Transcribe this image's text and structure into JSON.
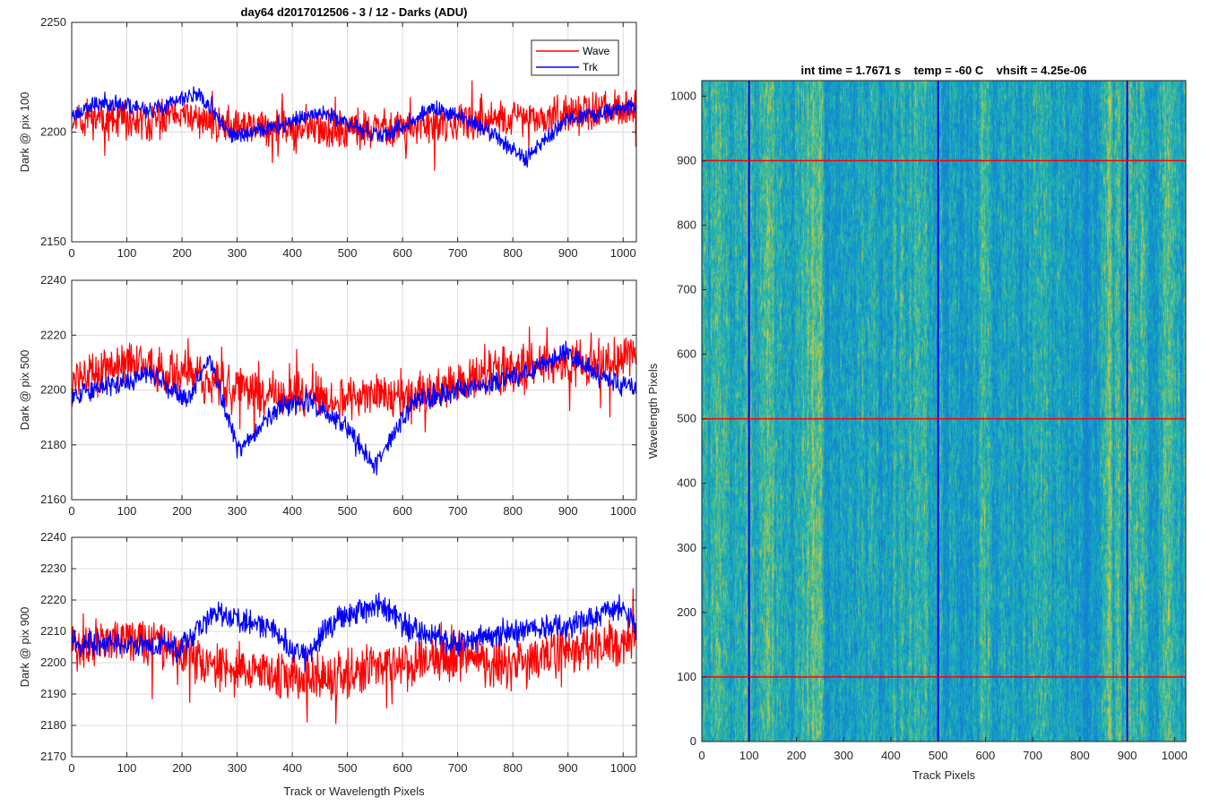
{
  "colors": {
    "wave": "#ff0000",
    "trk": "#0000ff",
    "grid": "#dcdcdc",
    "axis": "#262626"
  },
  "chart_data": [
    {
      "type": "line",
      "title": "day64 d2017012506 - 3 / 12 - Darks (ADU)",
      "xlabel": "",
      "ylabel": "Dark @ pix 100",
      "xlim": [
        0,
        1024
      ],
      "ylim": [
        2150,
        2250
      ],
      "xticks": [
        "0",
        "100",
        "200",
        "300",
        "400",
        "500",
        "600",
        "700",
        "800",
        "900",
        "1000"
      ],
      "yticks": [
        "2150",
        "2200",
        "2250"
      ],
      "grid": true,
      "legend": "top-right",
      "series": [
        {
          "name": "Wave",
          "color": "#ff0000",
          "n": 1024,
          "seed": 11,
          "noise": 6.5,
          "spike": 2.4,
          "base": [
            [
              0,
              2206
            ],
            [
              100,
              2205
            ],
            [
              200,
              2206
            ],
            [
              300,
              2203
            ],
            [
              400,
              2201
            ],
            [
              500,
              2201
            ],
            [
              600,
              2202
            ],
            [
              700,
              2204
            ],
            [
              800,
              2206
            ],
            [
              900,
              2208
            ],
            [
              1024,
              2212
            ]
          ]
        },
        {
          "name": "Trk",
          "color": "#0000ff",
          "n": 1024,
          "seed": 23,
          "noise": 3.0,
          "spike": 1.2,
          "base": [
            [
              0,
              2208
            ],
            [
              60,
              2214
            ],
            [
              150,
              2210
            ],
            [
              230,
              2218
            ],
            [
              290,
              2198
            ],
            [
              380,
              2203
            ],
            [
              450,
              2210
            ],
            [
              550,
              2198
            ],
            [
              600,
              2202
            ],
            [
              660,
              2212
            ],
            [
              760,
              2200
            ],
            [
              820,
              2188
            ],
            [
              900,
              2206
            ],
            [
              1024,
              2212
            ]
          ]
        }
      ]
    },
    {
      "type": "line",
      "title": "",
      "xlabel": "",
      "ylabel": "Dark @ pix 500",
      "xlim": [
        0,
        1024
      ],
      "ylim": [
        2160,
        2240
      ],
      "xticks": [
        "0",
        "100",
        "200",
        "300",
        "400",
        "500",
        "600",
        "700",
        "800",
        "900",
        "1000"
      ],
      "yticks": [
        "2160",
        "2180",
        "2200",
        "2220",
        "2240"
      ],
      "grid": true,
      "series": [
        {
          "name": "Wave",
          "color": "#ff0000",
          "n": 1024,
          "seed": 37,
          "noise": 6.5,
          "spike": 2.2,
          "base": [
            [
              0,
              2203
            ],
            [
              100,
              2210
            ],
            [
              200,
              2206
            ],
            [
              300,
              2200
            ],
            [
              400,
              2198
            ],
            [
              500,
              2198
            ],
            [
              600,
              2197
            ],
            [
              700,
              2203
            ],
            [
              800,
              2208
            ],
            [
              900,
              2210
            ],
            [
              1024,
              2212
            ]
          ]
        },
        {
          "name": "Trk",
          "color": "#0000ff",
          "n": 1024,
          "seed": 53,
          "noise": 3.0,
          "spike": 1.0,
          "base": [
            [
              0,
              2198
            ],
            [
              80,
              2202
            ],
            [
              150,
              2206
            ],
            [
              210,
              2196
            ],
            [
              250,
              2212
            ],
            [
              300,
              2178
            ],
            [
              380,
              2194
            ],
            [
              430,
              2196
            ],
            [
              500,
              2186
            ],
            [
              550,
              2172
            ],
            [
              620,
              2196
            ],
            [
              700,
              2200
            ],
            [
              820,
              2206
            ],
            [
              900,
              2214
            ],
            [
              960,
              2205
            ],
            [
              1024,
              2200
            ]
          ]
        }
      ]
    },
    {
      "type": "line",
      "title": "",
      "xlabel": "Track or Wavelength Pixels",
      "ylabel": "Dark @ pix 900",
      "xlim": [
        0,
        1024
      ],
      "ylim": [
        2170,
        2240
      ],
      "xticks": [
        "0",
        "100",
        "200",
        "300",
        "400",
        "500",
        "600",
        "700",
        "800",
        "900",
        "1000"
      ],
      "yticks": [
        "2170",
        "2180",
        "2190",
        "2200",
        "2210",
        "2220",
        "2230",
        "2240"
      ],
      "grid": true,
      "series": [
        {
          "name": "Wave",
          "color": "#ff0000",
          "n": 1024,
          "seed": 71,
          "noise": 6.0,
          "spike": 2.2,
          "base": [
            [
              0,
              2205
            ],
            [
              100,
              2208
            ],
            [
              200,
              2203
            ],
            [
              300,
              2196
            ],
            [
              400,
              2196
            ],
            [
              500,
              2196
            ],
            [
              600,
              2199
            ],
            [
              700,
              2202
            ],
            [
              800,
              2199
            ],
            [
              900,
              2204
            ],
            [
              1024,
              2208
            ]
          ]
        },
        {
          "name": "Trk",
          "color": "#0000ff",
          "n": 1024,
          "seed": 89,
          "noise": 3.2,
          "spike": 1.3,
          "base": [
            [
              0,
              2206
            ],
            [
              100,
              2206
            ],
            [
              200,
              2205
            ],
            [
              260,
              2216
            ],
            [
              350,
              2212
            ],
            [
              420,
              2202
            ],
            [
              480,
              2214
            ],
            [
              560,
              2218
            ],
            [
              620,
              2210
            ],
            [
              700,
              2206
            ],
            [
              800,
              2210
            ],
            [
              900,
              2212
            ],
            [
              1000,
              2218
            ],
            [
              1024,
              2210
            ]
          ]
        }
      ]
    },
    {
      "type": "heatmap",
      "title": "int time = 1.7671 s    temp = -60 C    vhsift = 4.25e-06",
      "xlabel": "Track Pixels",
      "ylabel": "Wavelength Pixels",
      "xlim": [
        0,
        1024
      ],
      "ylim": [
        0,
        1024
      ],
      "xticks": [
        "0",
        "100",
        "200",
        "300",
        "400",
        "500",
        "600",
        "700",
        "800",
        "900",
        "1000"
      ],
      "yticks": [
        "0",
        "100",
        "200",
        "300",
        "400",
        "500",
        "600",
        "700",
        "800",
        "900",
        "1000"
      ],
      "colormap": "parula",
      "vertical_lines": {
        "x": [
          100,
          500,
          900
        ],
        "color": "#0000ff"
      },
      "horizontal_lines": {
        "y": [
          100,
          500,
          900
        ],
        "color": "#ff0000"
      }
    }
  ]
}
